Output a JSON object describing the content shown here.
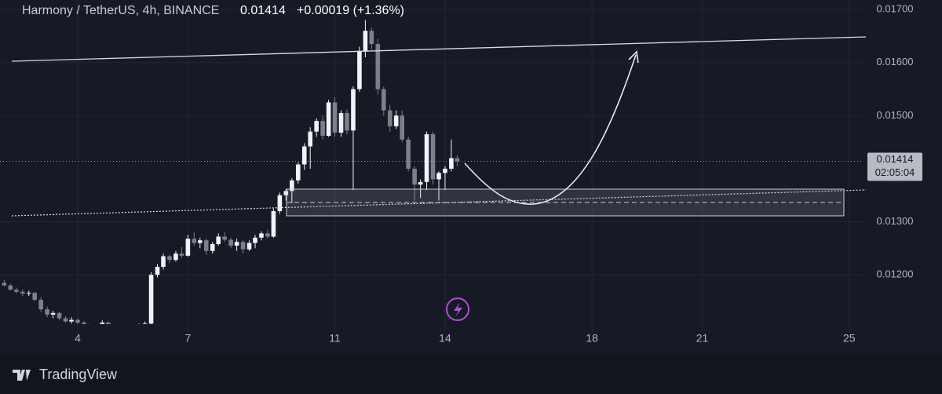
{
  "chart_data": {
    "type": "candlestick",
    "title": "Harmony / TetherUS, 4h, BINANCE",
    "last_price": {
      "value": 0.01414,
      "label": "0.01414"
    },
    "change": "+0.00019 (+1.36%)",
    "countdown": "02:05:04",
    "brand": "TradingView",
    "up_color": "#f0f3fa",
    "down_color": "#7d808a",
    "xlim": [
      1.885,
      25.39
    ],
    "xticks": [
      4,
      7,
      11,
      14,
      18,
      21,
      25
    ],
    "ylim": [
      0.01107,
      0.01718
    ],
    "yticks": [
      {
        "value": 0.017,
        "label": "0.01700"
      },
      {
        "value": 0.016,
        "label": "0.01600"
      },
      {
        "value": 0.015,
        "label": "0.01500"
      },
      {
        "value": 0.013,
        "label": "0.01300"
      },
      {
        "value": 0.012,
        "label": "0.01200"
      }
    ],
    "x": [
      2,
      2.17,
      2.33,
      2.5,
      2.67,
      2.83,
      3,
      3.17,
      3.33,
      3.5,
      3.67,
      3.83,
      4,
      4.17,
      4.33,
      4.5,
      4.67,
      4.83,
      5,
      5.17,
      5.33,
      5.5,
      5.67,
      5.83,
      6,
      6.17,
      6.33,
      6.5,
      6.67,
      6.83,
      7,
      7.17,
      7.33,
      7.5,
      7.67,
      7.83,
      8,
      8.17,
      8.33,
      8.5,
      8.67,
      8.83,
      9,
      9.17,
      9.33,
      9.5,
      9.67,
      9.83,
      10,
      10.17,
      10.33,
      10.5,
      10.67,
      10.83,
      11,
      11.17,
      11.33,
      11.5,
      11.67,
      11.83,
      12,
      12.17,
      12.33,
      12.5,
      12.67,
      12.83,
      13,
      13.17,
      13.33,
      13.5,
      13.67,
      13.83,
      14,
      14.17,
      14.33
    ],
    "open": [
      0.01185,
      0.0118,
      0.01172,
      0.01168,
      0.01165,
      0.01166,
      0.01153,
      0.01135,
      0.01125,
      0.01128,
      0.01118,
      0.01112,
      0.01115,
      0.0111,
      0.01104,
      0.01102,
      0.011,
      0.0111,
      0.01101,
      0.01099,
      0.01097,
      0.01096,
      0.01094,
      0.01105,
      0.01108,
      0.012,
      0.01215,
      0.01235,
      0.01228,
      0.0124,
      0.01236,
      0.01268,
      0.0126,
      0.01265,
      0.01245,
      0.01258,
      0.01272,
      0.01266,
      0.01255,
      0.01262,
      0.01248,
      0.0126,
      0.0127,
      0.01278,
      0.01272,
      0.0132,
      0.0135,
      0.01358,
      0.01378,
      0.01408,
      0.01442,
      0.0147,
      0.0149,
      0.01462,
      0.01525,
      0.01468,
      0.01505,
      0.01472,
      0.0155,
      0.01622,
      0.0166,
      0.01635,
      0.0155,
      0.0151,
      0.0148,
      0.015,
      0.01455,
      0.014,
      0.0137,
      0.01375,
      0.01465,
      0.0138,
      0.01392,
      0.014,
      0.0142
    ],
    "high": [
      0.0119,
      0.01183,
      0.01176,
      0.01172,
      0.0117,
      0.01168,
      0.01158,
      0.0114,
      0.01132,
      0.0113,
      0.01122,
      0.0112,
      0.01118,
      0.01113,
      0.01108,
      0.01106,
      0.01114,
      0.01112,
      0.01105,
      0.01103,
      0.01101,
      0.011,
      0.01108,
      0.01112,
      0.01205,
      0.0122,
      0.0124,
      0.01238,
      0.01245,
      0.01252,
      0.01275,
      0.0128,
      0.0127,
      0.01268,
      0.01262,
      0.01278,
      0.0128,
      0.0127,
      0.01268,
      0.01266,
      0.01265,
      0.01275,
      0.01282,
      0.01285,
      0.01325,
      0.01355,
      0.01362,
      0.01382,
      0.01412,
      0.01448,
      0.01478,
      0.01495,
      0.015,
      0.0153,
      0.01535,
      0.0151,
      0.01512,
      0.01555,
      0.0163,
      0.0168,
      0.01665,
      0.01645,
      0.01555,
      0.0152,
      0.0151,
      0.0151,
      0.0146,
      0.01405,
      0.0138,
      0.0147,
      0.0147,
      0.01395,
      0.01405,
      0.01455,
      0.01425
    ],
    "low": [
      0.01178,
      0.0117,
      0.01165,
      0.0116,
      0.0116,
      0.0115,
      0.0113,
      0.0112,
      0.01118,
      0.01115,
      0.0111,
      0.01108,
      0.01106,
      0.011,
      0.01098,
      0.01096,
      0.01097,
      0.01098,
      0.01095,
      0.01094,
      0.01092,
      0.0109,
      0.01092,
      0.011,
      0.01106,
      0.01195,
      0.0121,
      0.01222,
      0.01225,
      0.01232,
      0.01234,
      0.01255,
      0.0125,
      0.01238,
      0.0124,
      0.01255,
      0.01262,
      0.0125,
      0.01245,
      0.0124,
      0.01245,
      0.0125,
      0.01265,
      0.01268,
      0.0127,
      0.01315,
      0.0134,
      0.01335,
      0.01372,
      0.01398,
      0.014,
      0.0146,
      0.01455,
      0.0146,
      0.0146,
      0.0146,
      0.01465,
      0.0136,
      0.01545,
      0.0161,
      0.01625,
      0.0154,
      0.015,
      0.0147,
      0.01475,
      0.0145,
      0.01395,
      0.0134,
      0.01345,
      0.0136,
      0.0137,
      0.0134,
      0.0136,
      0.01395,
      0.01405
    ],
    "close": [
      0.0118,
      0.01172,
      0.01168,
      0.01165,
      0.01166,
      0.01153,
      0.01135,
      0.01125,
      0.01128,
      0.01118,
      0.01112,
      0.01115,
      0.0111,
      0.01104,
      0.01102,
      0.011,
      0.0111,
      0.01101,
      0.01099,
      0.01097,
      0.01096,
      0.01094,
      0.01105,
      0.01108,
      0.012,
      0.01215,
      0.01235,
      0.01228,
      0.0124,
      0.01236,
      0.01268,
      0.0126,
      0.01265,
      0.01245,
      0.01258,
      0.01272,
      0.01266,
      0.01255,
      0.01262,
      0.01248,
      0.0126,
      0.0127,
      0.01278,
      0.01272,
      0.0132,
      0.0135,
      0.01358,
      0.01378,
      0.01408,
      0.01442,
      0.0147,
      0.0149,
      0.01462,
      0.01525,
      0.01468,
      0.01505,
      0.01472,
      0.0155,
      0.01622,
      0.0166,
      0.01635,
      0.0155,
      0.0151,
      0.0148,
      0.015,
      0.01455,
      0.014,
      0.0137,
      0.01375,
      0.01465,
      0.0138,
      0.01392,
      0.014,
      0.0142,
      0.01414
    ]
  }
}
